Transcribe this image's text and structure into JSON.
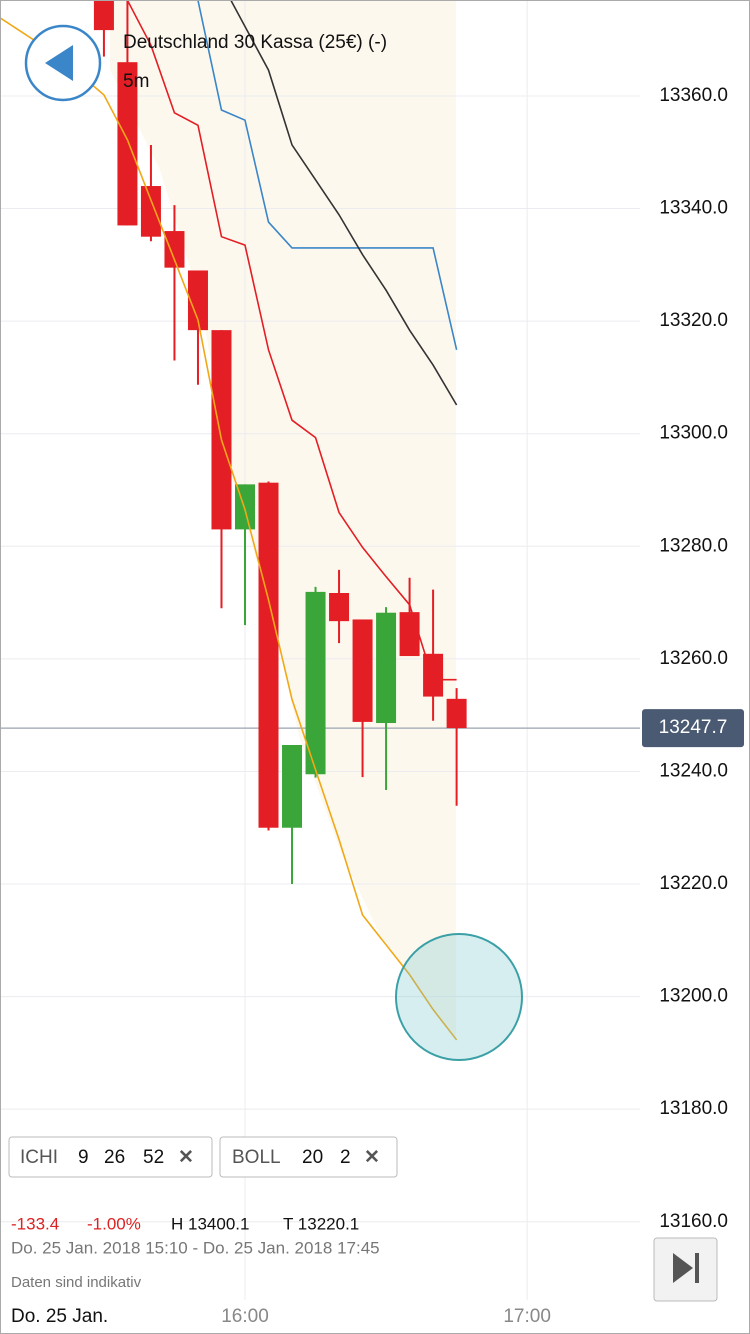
{
  "chart_data": {
    "type": "candlestick",
    "title": "Deutschland 30 Kassa (25€) (-)",
    "subtitle": "5m",
    "x": [
      930,
      935,
      940,
      945,
      950,
      955,
      960,
      965,
      970,
      975,
      980,
      985,
      990,
      995,
      1000,
      1005
    ],
    "open": [
      13377,
      13366,
      13344,
      13336,
      13329,
      13318.4,
      13283,
      13291.3,
      13230,
      13239.5,
      13271.7,
      13267,
      13248.6,
      13268.3,
      13260.9,
      13252.9
    ],
    "high": [
      13377,
      13377,
      13351.3,
      13340.6,
      13329,
      13318.4,
      13291,
      13291.5,
      13244.7,
      13272.8,
      13275.8,
      13267,
      13269.2,
      13274.4,
      13272.3,
      13254.8
    ],
    "low": [
      13367,
      13337,
      13334.2,
      13313,
      13308.7,
      13269,
      13266,
      13229.5,
      13220,
      13238.9,
      13262.8,
      13239,
      13236.7,
      13260.5,
      13249,
      13233.9
    ],
    "close": [
      13371.7,
      13337,
      13335,
      13329.5,
      13318.4,
      13283,
      13291,
      13230,
      13244.7,
      13271.9,
      13266.7,
      13248.8,
      13268.2,
      13260.5,
      13253.3,
      13247.7
    ],
    "up_color": "#3aa63a",
    "down_color": "#e31e24",
    "overlays": [
      {
        "color": "#f0a818",
        "x": [
          907.9,
          915,
          920,
          930,
          935,
          940,
          945,
          950,
          955,
          960,
          965,
          970,
          975,
          980,
          985,
          990,
          995,
          1000,
          1005
        ],
        "values": [
          13373.9,
          13370,
          13367.3,
          13360.2,
          13352.2,
          13341.5,
          13330.9,
          13320.2,
          13298.9,
          13286.5,
          13270.5,
          13252.8,
          13240.3,
          13227.9,
          13214.5,
          13209.2,
          13203.9,
          13197.7,
          13192.3
        ]
      },
      {
        "color": "#e31e24",
        "x": [
          935,
          940,
          945,
          950,
          955,
          960,
          965,
          970,
          975,
          980,
          985,
          990,
          995,
          1000,
          1005
        ],
        "values": [
          13377,
          13369,
          13357,
          13354.8,
          13335,
          13333.5,
          13314.9,
          13302.4,
          13299.3,
          13286,
          13279.8,
          13274.6,
          13269.6,
          13256.3,
          13256.3
        ]
      },
      {
        "color": "#3a86c8",
        "x": [
          950,
          955,
          960,
          965,
          970,
          975,
          980,
          985,
          990,
          995,
          1000,
          1005
        ],
        "values": [
          13377,
          13357.5,
          13355.7,
          13337.6,
          13333,
          13333,
          13333,
          13333,
          13333,
          13333,
          13333,
          13314.9
        ]
      },
      {
        "color": "#333333",
        "x": [
          957,
          965,
          970,
          975,
          980,
          985,
          990,
          995,
          1000,
          1005
        ],
        "values": [
          13377,
          13364.6,
          13351.3,
          13345.1,
          13338.9,
          13331.8,
          13325.5,
          13318.4,
          13312.2,
          13305.1
        ]
      }
    ],
    "last_price": 13247.7,
    "ylim": [
      13146.1,
      13377.05
    ],
    "yticks": [
      {
        "value": 13160,
        "label": "13160.0"
      },
      {
        "value": 13180,
        "label": "13180.0"
      },
      {
        "value": 13200,
        "label": "13200.0"
      },
      {
        "value": 13220,
        "label": "13220.0"
      },
      {
        "value": 13240,
        "label": "13240.0"
      },
      {
        "value": 13260,
        "label": "13260.0"
      },
      {
        "value": 13280,
        "label": "13280.0"
      },
      {
        "value": 13300,
        "label": "13300.0"
      },
      {
        "value": 13320,
        "label": "13320.0"
      },
      {
        "value": 13340,
        "label": "13340.0"
      },
      {
        "value": 13360,
        "label": "13360.0"
      }
    ],
    "xlim": [
      907.9,
      1044
    ],
    "xticks": [
      {
        "value": 960,
        "label": "16:00"
      },
      {
        "value": 1020,
        "label": "17:00"
      }
    ],
    "grid": true,
    "date_label": "Do. 25 Jan.",
    "indicators": [
      {
        "name": "ICHI",
        "params": [
          9,
          26,
          52
        ]
      },
      {
        "name": "BOLL",
        "params": [
          20,
          2
        ]
      }
    ],
    "stats": {
      "change": "-133.4",
      "change_pct": "-1.00%",
      "high": "H 13400.1",
      "low": "T 13220.1"
    },
    "range": "Do. 25 Jan. 2018 15:10 - Do. 25 Jan. 2018 17:45",
    "disclaimer": "Daten sind indikativ"
  }
}
